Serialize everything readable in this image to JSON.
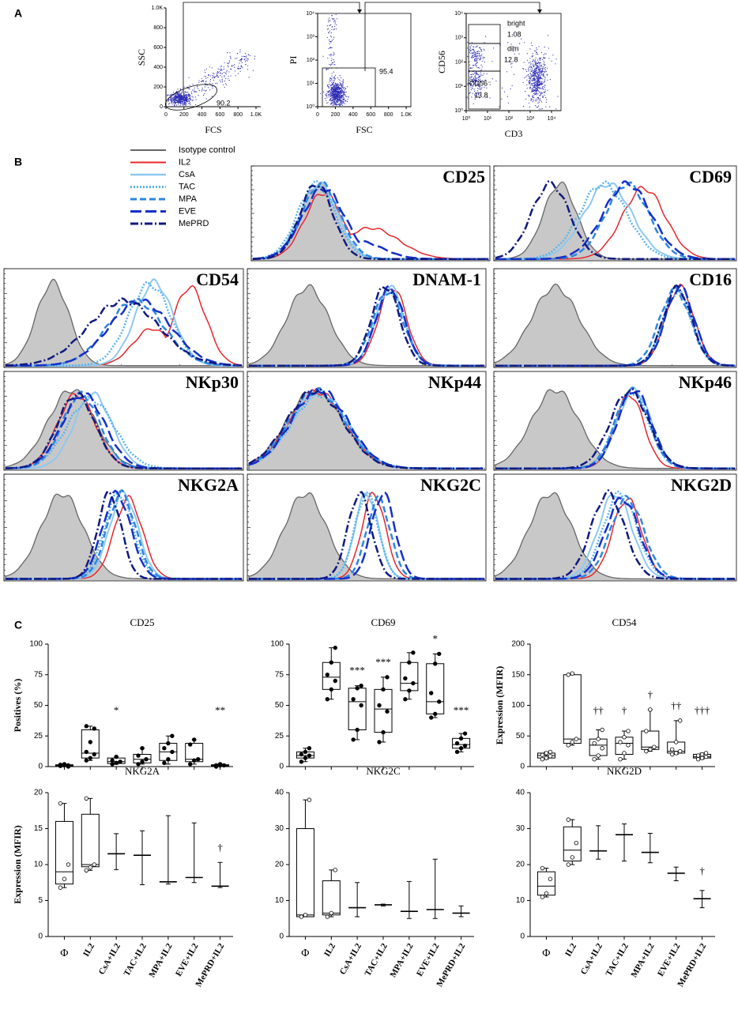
{
  "panel_labels": [
    "A",
    "B",
    "C"
  ],
  "scatter_plots": [
    {
      "y_label": "SSC",
      "x_label": "FCS",
      "yticks": [
        "0",
        "200",
        "400",
        "600",
        "800",
        "1.0K"
      ],
      "xticks": [
        "0",
        "200",
        "400",
        "600",
        "800",
        "1.0K"
      ],
      "gates": [
        {
          "value": 90.2
        }
      ]
    },
    {
      "y_label": "PI",
      "x_label": "FSC",
      "yticks": [
        "10⁰",
        "10¹",
        "10²",
        "10³",
        "10⁴"
      ],
      "xticks": [
        "0",
        "200",
        "400",
        "600",
        "800",
        "1.0K"
      ],
      "gates": [
        {
          "value": 95.4
        }
      ]
    },
    {
      "y_label": "CD56",
      "x_label": "CD3",
      "yticks": [
        "10⁰",
        "10¹",
        "10²",
        "10³",
        "10⁴"
      ],
      "xticks": [
        "10⁰",
        "10¹",
        "10²",
        "10³",
        "10⁴"
      ],
      "gates": [
        {
          "label": "bright",
          "value": 1.08
        },
        {
          "label": "dim",
          "value": 12.8
        },
        {
          "label": "CD56⁻",
          "value": 13.8
        }
      ]
    }
  ],
  "histograms": {
    "legend": [
      {
        "name": "Isotype control",
        "color": "#666666",
        "dash": "solid"
      },
      {
        "name": "IL2",
        "color": "#e8262b",
        "dash": "solid"
      },
      {
        "name": "CsA",
        "color": "#8ec8f0",
        "dash": "solid"
      },
      {
        "name": "TAC",
        "color": "#5ab4ee",
        "dash": "dotted"
      },
      {
        "name": "MPA",
        "color": "#2e86e0",
        "dash": "dashed"
      },
      {
        "name": "EVE",
        "color": "#1530c8",
        "dash": "long-dash"
      },
      {
        "name": "MePRD",
        "color": "#101a80",
        "dash": "dash-dot"
      }
    ],
    "markers": [
      "CD25",
      "CD69",
      "CD54",
      "DNAM-1",
      "CD16",
      "NKp30",
      "NKp44",
      "NKp46",
      "NKG2A",
      "NKG2C",
      "NKG2D"
    ]
  },
  "chart_data": [
    {
      "type": "box",
      "title": "CD25",
      "y_label": "Positives (%)",
      "ylim": [
        0,
        100
      ],
      "yticks": [
        0,
        25,
        50,
        75,
        100
      ],
      "point_style": "filled",
      "groups": [
        {
          "min": 0,
          "q1": 0.5,
          "median": 1,
          "q3": 1.5,
          "max": 2,
          "points": [
            0.5,
            1,
            1,
            1.5,
            2,
            0
          ]
        },
        {
          "min": 5,
          "q1": 7,
          "median": 11,
          "q3": 30,
          "max": 33,
          "points": [
            5,
            7,
            10,
            12,
            20,
            31,
            33
          ]
        },
        {
          "min": 2,
          "q1": 2.5,
          "median": 4,
          "q3": 7,
          "max": 8,
          "points": [
            2,
            3,
            4,
            5,
            8
          ],
          "annotation": "*"
        },
        {
          "min": 2,
          "q1": 3,
          "median": 6,
          "q3": 10,
          "max": 15,
          "points": [
            2,
            4,
            6,
            9,
            15
          ]
        },
        {
          "min": 2,
          "q1": 5,
          "median": 12,
          "q3": 19,
          "max": 25,
          "points": [
            3,
            6,
            12,
            15,
            19,
            25
          ]
        },
        {
          "min": 2,
          "q1": 4,
          "median": 6,
          "q3": 19,
          "max": 22,
          "points": [
            2,
            5,
            6,
            18,
            22
          ]
        },
        {
          "min": 0,
          "q1": 0.5,
          "median": 1,
          "q3": 1.5,
          "max": 2,
          "points": [
            0,
            1,
            1,
            1,
            2
          ],
          "annotation": "**"
        }
      ]
    },
    {
      "type": "box",
      "title": "CD69",
      "ylim": [
        0,
        100
      ],
      "yticks": [
        0,
        25,
        50,
        75,
        100
      ],
      "point_style": "filled",
      "groups": [
        {
          "min": 4,
          "q1": 7,
          "median": 9,
          "q3": 12,
          "max": 15,
          "points": [
            4,
            7,
            9,
            10,
            12,
            15
          ]
        },
        {
          "min": 55,
          "q1": 63,
          "median": 73,
          "q3": 85,
          "max": 97,
          "points": [
            55,
            63,
            70,
            75,
            85,
            97
          ]
        },
        {
          "min": 22,
          "q1": 30,
          "median": 53,
          "q3": 64,
          "max": 66,
          "points": [
            22,
            30,
            50,
            55,
            64,
            66
          ],
          "annotation": "***"
        },
        {
          "min": 20,
          "q1": 28,
          "median": 47,
          "q3": 63,
          "max": 73,
          "points": [
            20,
            28,
            45,
            50,
            63,
            73
          ],
          "annotation": "***"
        },
        {
          "min": 55,
          "q1": 62,
          "median": 68,
          "q3": 85,
          "max": 93,
          "points": [
            55,
            62,
            68,
            72,
            85,
            93
          ]
        },
        {
          "min": 40,
          "q1": 43,
          "median": 53,
          "q3": 84,
          "max": 92,
          "points": [
            40,
            43,
            53,
            60,
            84,
            92
          ],
          "annotation": "*"
        },
        {
          "min": 12,
          "q1": 15,
          "median": 18,
          "q3": 23,
          "max": 27,
          "points": [
            12,
            15,
            17,
            19,
            23,
            27
          ],
          "annotation": "***"
        }
      ]
    },
    {
      "type": "box",
      "title": "CD54",
      "y_label": "Expression (MFIR)",
      "ylim": [
        0,
        200
      ],
      "yticks": [
        0,
        50,
        100,
        150,
        200
      ],
      "point_style": "open",
      "groups": [
        {
          "min": 12,
          "q1": 14,
          "median": 18,
          "q3": 22,
          "max": 24,
          "points": [
            12,
            14,
            17,
            19,
            22,
            24
          ]
        },
        {
          "min": 35,
          "q1": 38,
          "median": 45,
          "q3": 150,
          "max": 152,
          "points": [
            35,
            40,
            45,
            150,
            152
          ]
        },
        {
          "min": 12,
          "q1": 18,
          "median": 35,
          "q3": 45,
          "max": 60,
          "points": [
            12,
            18,
            30,
            38,
            45,
            60
          ],
          "annotation": "††"
        },
        {
          "min": 12,
          "q1": 20,
          "median": 38,
          "q3": 48,
          "max": 58,
          "points": [
            12,
            22,
            35,
            40,
            48,
            58
          ],
          "annotation": "†"
        },
        {
          "min": 25,
          "q1": 28,
          "median": 32,
          "q3": 58,
          "max": 93,
          "points": [
            25,
            28,
            32,
            58,
            93
          ],
          "annotation": "†"
        },
        {
          "min": 20,
          "q1": 22,
          "median": 25,
          "q3": 40,
          "max": 75,
          "points": [
            20,
            22,
            25,
            28,
            40,
            75
          ],
          "annotation": "††"
        },
        {
          "min": 12,
          "q1": 14,
          "median": 16,
          "q3": 20,
          "max": 22,
          "points": [
            12,
            14,
            16,
            18,
            20,
            22
          ],
          "annotation": "†††"
        }
      ]
    },
    {
      "type": "box",
      "title": "NKG2A",
      "y_label": "Expression (MFIR)",
      "ylim": [
        0,
        20
      ],
      "yticks": [
        0,
        5,
        10,
        15,
        20
      ],
      "point_style": "open",
      "categories": [
        "Φ",
        "IL2",
        "CsA+IL2",
        "TAC+IL2",
        "MPA+IL2",
        "EVE+IL2",
        "MePRD+IL2"
      ],
      "groups": [
        {
          "min": 6.8,
          "q1": 7.3,
          "median": 9,
          "q3": 16,
          "max": 18.5,
          "points": [
            6.8,
            8,
            10,
            18.5
          ]
        },
        {
          "min": 9.2,
          "q1": 9.7,
          "median": 10,
          "q3": 17,
          "max": 19.2,
          "points": [
            9.2,
            9.6,
            10,
            19.2
          ]
        },
        {
          "min": 9.3,
          "median": 11.5,
          "max": 14.3
        },
        {
          "min": 7.2,
          "median": 11.3,
          "max": 14.7
        },
        {
          "min": 7.3,
          "median": 7.6,
          "max": 16.8
        },
        {
          "min": 7.5,
          "median": 8.2,
          "max": 15.8
        },
        {
          "min": 6.8,
          "median": 7,
          "max": 10.3,
          "annotation": "†"
        }
      ]
    },
    {
      "type": "box",
      "title": "NKG2C",
      "ylim": [
        0,
        40
      ],
      "yticks": [
        0,
        10,
        20,
        30,
        40
      ],
      "point_style": "open",
      "categories": [
        "Φ",
        "IL2",
        "CsA+IL2",
        "TAC+IL2",
        "MPA+IL2",
        "EVE+IL2",
        "MePRD+IL2"
      ],
      "groups": [
        {
          "min": 5.5,
          "q1": 5.5,
          "median": 6,
          "q3": 30,
          "max": 38,
          "points": [
            5.5,
            6,
            38
          ]
        },
        {
          "min": 5.5,
          "q1": 6,
          "median": 6.5,
          "q3": 15.5,
          "max": 18.5,
          "points": [
            5.5,
            6.5,
            18.5
          ]
        },
        {
          "min": 5.5,
          "median": 8,
          "max": 15
        },
        {
          "min": 8.5,
          "median": 8.8,
          "max": 9
        },
        {
          "min": 5,
          "median": 7,
          "max": 15.3
        },
        {
          "min": 5,
          "median": 7.5,
          "max": 21.5
        },
        {
          "min": 5.5,
          "median": 6.5,
          "max": 8.5
        }
      ]
    },
    {
      "type": "box",
      "title": "NKG2D",
      "ylim": [
        0,
        40
      ],
      "yticks": [
        0,
        10,
        20,
        30,
        40
      ],
      "point_style": "open",
      "categories": [
        "Φ",
        "IL2",
        "CsA+IL2",
        "TAC+IL2",
        "MPA+IL2",
        "EVE+IL2",
        "MePRD+IL2"
      ],
      "groups": [
        {
          "min": 11,
          "q1": 11.5,
          "median": 14,
          "q3": 18,
          "max": 19,
          "points": [
            11,
            12,
            16,
            19
          ]
        },
        {
          "min": 20,
          "q1": 21,
          "median": 24,
          "q3": 30.5,
          "max": 32.5,
          "points": [
            20,
            22,
            26,
            32.5
          ]
        },
        {
          "min": 21.5,
          "median": 23.8,
          "max": 30.8
        },
        {
          "min": 21,
          "median": 28.3,
          "max": 31.3
        },
        {
          "min": 20.5,
          "median": 23.4,
          "max": 28.7
        },
        {
          "min": 15.5,
          "median": 17.6,
          "max": 19.3
        },
        {
          "min": 8,
          "median": 10.5,
          "max": 12.8,
          "annotation": "†"
        }
      ]
    }
  ]
}
